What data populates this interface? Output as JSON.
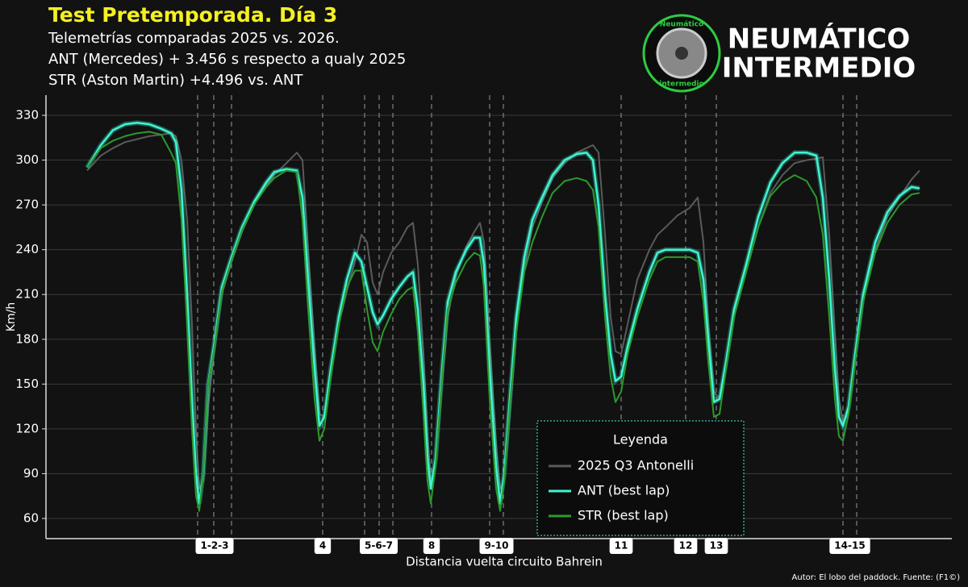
{
  "chart_data": {
    "type": "line",
    "title": "Test Pretemporada. Día 3",
    "subtitle": [
      "Telemetrías comparadas 2025 vs. 2026.",
      "ANT (Mercedes) + 3.456 s respecto a qualy 2025",
      "STR (Aston Martin) +4.496 vs. ANT"
    ],
    "brand": [
      "NEUMÁTICO",
      "INTERMEDIO"
    ],
    "logo_text": [
      "Neumático",
      "intermedio"
    ],
    "ylabel": "Km/h",
    "xlabel": "Distancia vuelta circuito Bahrein",
    "credit": "Autor: El lobo del paddock. Fuente: (F1©)",
    "legend_title": "Leyenda",
    "ylim": [
      46.5,
      343.5
    ],
    "yticks": [
      60,
      90,
      120,
      150,
      180,
      210,
      240,
      270,
      300,
      330
    ],
    "xlim": [
      -255,
      5360
    ],
    "grid": true,
    "x": [
      0,
      85,
      160,
      235,
      310,
      385,
      460,
      520,
      550,
      585,
      620,
      650,
      675,
      695,
      720,
      750,
      785,
      835,
      895,
      960,
      1035,
      1110,
      1160,
      1235,
      1300,
      1335,
      1370,
      1410,
      1440,
      1470,
      1510,
      1560,
      1610,
      1660,
      1700,
      1735,
      1770,
      1800,
      1835,
      1885,
      1935,
      1985,
      2020,
      2050,
      2085,
      2110,
      2130,
      2160,
      2200,
      2235,
      2285,
      2350,
      2400,
      2435,
      2460,
      2495,
      2535,
      2560,
      2585,
      2620,
      2660,
      2710,
      2760,
      2820,
      2885,
      2960,
      3035,
      3095,
      3135,
      3170,
      3210,
      3245,
      3275,
      3310,
      3350,
      3410,
      3485,
      3535,
      3585,
      3660,
      3735,
      3785,
      3820,
      3850,
      3885,
      3920,
      3960,
      4010,
      4085,
      4160,
      4235,
      4310,
      4385,
      4460,
      4520,
      4560,
      4600,
      4635,
      4660,
      4685,
      4720,
      4760,
      4810,
      4885,
      4960,
      5035,
      5110,
      5160
    ],
    "series": [
      {
        "name": "2025 Q3 Antonelli",
        "color": "#5a5a5a",
        "values": [
          293,
          303,
          308,
          312,
          314,
          316,
          317,
          318,
          316,
          300,
          260,
          190,
          120,
          80,
          85,
          135,
          170,
          210,
          232,
          252,
          270,
          283,
          290,
          298,
          305,
          300,
          240,
          175,
          130,
          128,
          155,
          190,
          212,
          232,
          250,
          245,
          218,
          210,
          225,
          238,
          245,
          255,
          258,
          230,
          170,
          115,
          85,
          95,
          150,
          195,
          222,
          242,
          252,
          258,
          245,
          180,
          110,
          80,
          85,
          130,
          185,
          228,
          255,
          272,
          288,
          298,
          305,
          308,
          310,
          305,
          250,
          195,
          172,
          170,
          190,
          220,
          240,
          250,
          255,
          263,
          268,
          275,
          245,
          190,
          145,
          140,
          160,
          195,
          225,
          255,
          278,
          290,
          298,
          300,
          301,
          302,
          250,
          185,
          140,
          125,
          130,
          165,
          205,
          240,
          262,
          275,
          287,
          293
        ]
      },
      {
        "name": "ANT (best lap)",
        "color": "#3ff5d2",
        "values": [
          295,
          310,
          320,
          324,
          325,
          324,
          321,
          318,
          312,
          280,
          210,
          140,
          90,
          70,
          90,
          150,
          175,
          215,
          235,
          255,
          272,
          285,
          292,
          294,
          293,
          275,
          220,
          160,
          122,
          128,
          160,
          195,
          220,
          238,
          232,
          215,
          198,
          190,
          196,
          207,
          215,
          222,
          225,
          200,
          150,
          100,
          80,
          100,
          160,
          205,
          225,
          240,
          248,
          248,
          230,
          160,
          95,
          70,
          90,
          140,
          195,
          235,
          260,
          275,
          290,
          300,
          304,
          305,
          300,
          270,
          210,
          170,
          152,
          155,
          175,
          200,
          225,
          238,
          240,
          240,
          240,
          238,
          220,
          180,
          138,
          140,
          165,
          200,
          230,
          262,
          285,
          298,
          305,
          305,
          303,
          275,
          220,
          160,
          128,
          122,
          135,
          170,
          210,
          245,
          265,
          276,
          282,
          281
        ]
      },
      {
        "name": "STR (best lap)",
        "color": "#2b9a2b",
        "values": [
          295,
          308,
          313,
          316,
          318,
          319,
          317,
          305,
          298,
          260,
          190,
          120,
          75,
          65,
          90,
          150,
          172,
          212,
          233,
          253,
          270,
          282,
          288,
          293,
          292,
          260,
          200,
          140,
          112,
          120,
          155,
          190,
          215,
          226,
          226,
          200,
          178,
          172,
          185,
          197,
          207,
          213,
          215,
          185,
          130,
          85,
          70,
          95,
          155,
          200,
          218,
          232,
          238,
          236,
          215,
          140,
          80,
          65,
          85,
          135,
          185,
          225,
          245,
          262,
          278,
          286,
          288,
          286,
          280,
          255,
          195,
          155,
          138,
          145,
          170,
          195,
          220,
          232,
          235,
          235,
          235,
          232,
          205,
          165,
          128,
          130,
          160,
          195,
          225,
          255,
          276,
          285,
          290,
          286,
          275,
          250,
          195,
          140,
          115,
          112,
          130,
          165,
          205,
          238,
          258,
          270,
          277,
          278
        ]
      }
    ],
    "corners": [
      {
        "label": "1-2-3",
        "x": [
          685,
          785,
          895
        ]
      },
      {
        "label": "4",
        "x": [
          1460
        ]
      },
      {
        "label": "5-6-7",
        "x": [
          1720,
          1810,
          1895
        ]
      },
      {
        "label": "8",
        "x": [
          2135
        ]
      },
      {
        "label": "9-10",
        "x": [
          2495,
          2580
        ]
      },
      {
        "label": "11",
        "x": [
          3310
        ]
      },
      {
        "label": "12",
        "x": [
          3710
        ]
      },
      {
        "label": "13",
        "x": [
          3900
        ]
      },
      {
        "label": "14-15",
        "x": [
          4685,
          4770
        ]
      }
    ]
  }
}
